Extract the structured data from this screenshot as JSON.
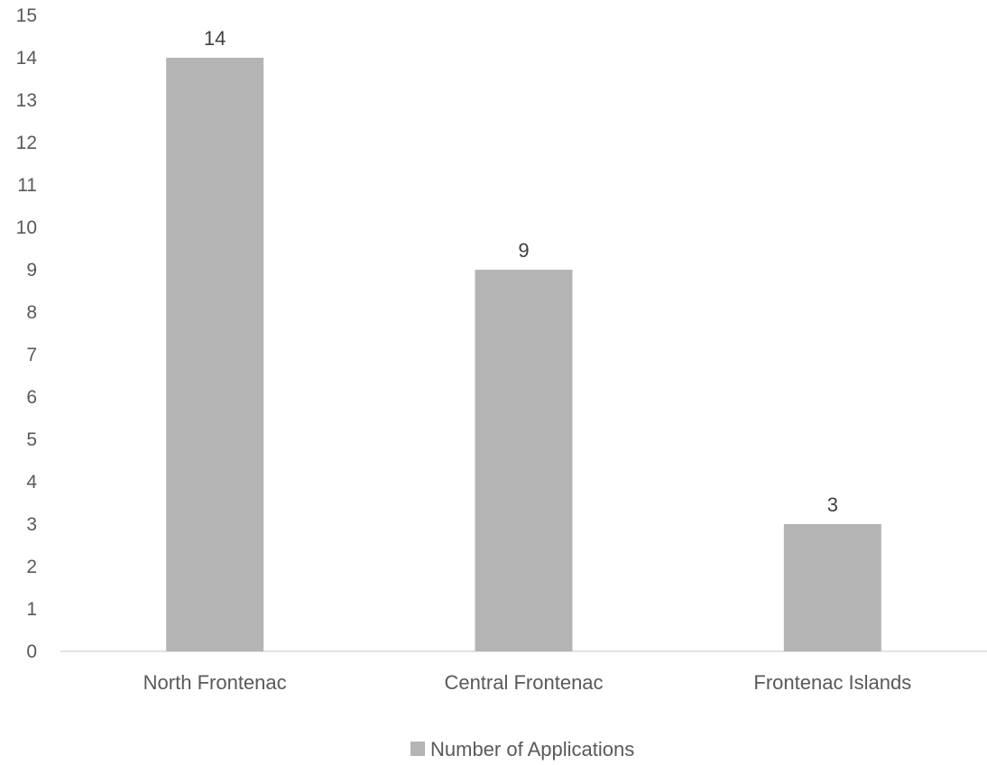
{
  "chart_data": {
    "type": "bar",
    "categories": [
      "North Frontenac",
      "Central Frontenac",
      "Frontenac Islands"
    ],
    "series": [
      {
        "name": "Number of Applications",
        "values": [
          14,
          9,
          3
        ],
        "color": "#b4b4b4"
      }
    ],
    "ylim": [
      0,
      15
    ],
    "ytick_step": 1,
    "grid": false,
    "data_labels": true,
    "legend": "bottom",
    "axis_color": "#d9d9d9",
    "text_color": "#595959"
  }
}
